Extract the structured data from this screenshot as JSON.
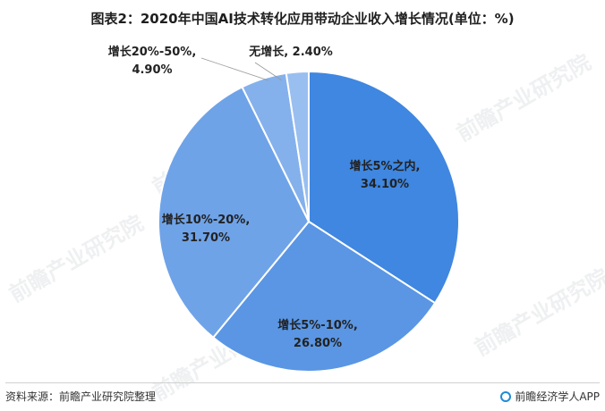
{
  "title": "图表2：2020年中国AI技术转化应用带动企业收入增长情况(单位：%)",
  "source": "资料来源：前瞻产业研究院整理",
  "brand": "前瞻经济学人APP",
  "watermark": "前瞻产业研究院",
  "chart_data": {
    "type": "pie",
    "slices": [
      {
        "name": "增长5%之内",
        "value": 34.1,
        "label": "34.10%",
        "color": "#3f87e0"
      },
      {
        "name": "增长5%-10%",
        "value": 26.8,
        "label": "26.80%",
        "color": "#5a96e4"
      },
      {
        "name": "增长10%-20%",
        "value": 31.7,
        "label": "31.70%",
        "color": "#6fa3e8"
      },
      {
        "name": "增长20%-50%",
        "value": 4.9,
        "label": "4.90%",
        "color": "#84b1ec"
      },
      {
        "name": "无增长",
        "value": 2.4,
        "label": "2.40%",
        "color": "#99bff0"
      }
    ]
  }
}
